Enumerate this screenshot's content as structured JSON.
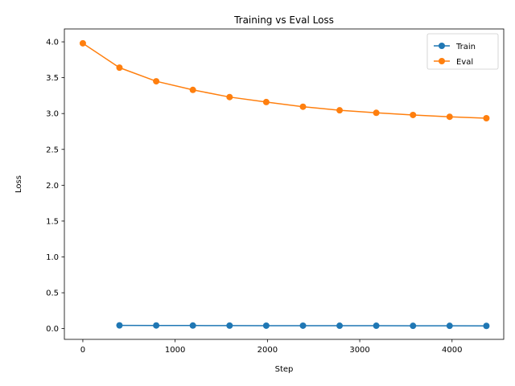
{
  "chart_data": {
    "type": "line",
    "title": "Training vs Eval Loss",
    "xlabel": "Step",
    "ylabel": "Loss",
    "xlim": [
      -200,
      4560
    ],
    "ylim": [
      -0.15,
      4.18
    ],
    "xticks": [
      0,
      1000,
      2000,
      3000,
      4000
    ],
    "yticks": [
      0.0,
      0.5,
      1.0,
      1.5,
      2.0,
      2.5,
      3.0,
      3.5,
      4.0
    ],
    "grid": false,
    "legend_position": "top-right",
    "series": [
      {
        "name": "Train",
        "color": "#1f77b4",
        "marker": "circle",
        "x": [
          397,
          795,
          1192,
          1590,
          1987,
          2385,
          2782,
          3179,
          3577,
          3974,
          4372
        ],
        "y": [
          0.045,
          0.044,
          0.043,
          0.042,
          0.041,
          0.041,
          0.04,
          0.04,
          0.039,
          0.039,
          0.038
        ]
      },
      {
        "name": "Eval",
        "color": "#ff7f0e",
        "marker": "circle",
        "x": [
          0,
          397,
          795,
          1192,
          1590,
          1987,
          2385,
          2782,
          3179,
          3577,
          3974,
          4372
        ],
        "y": [
          3.98,
          3.64,
          3.45,
          3.33,
          3.23,
          3.16,
          3.095,
          3.045,
          3.01,
          2.98,
          2.955,
          2.935
        ]
      }
    ]
  }
}
